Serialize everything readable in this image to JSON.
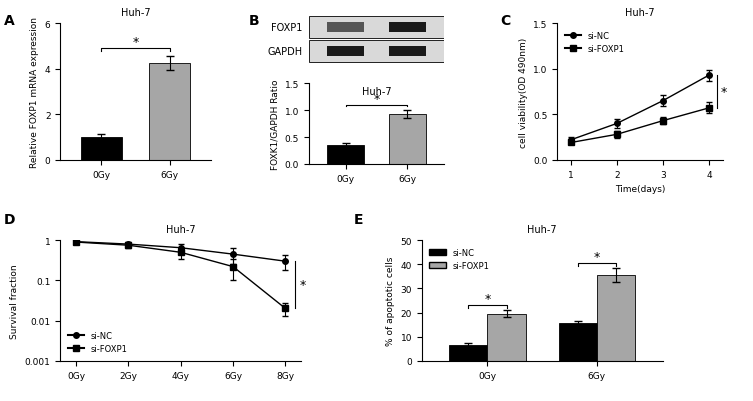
{
  "chart_data": [
    {
      "panel": "A",
      "type": "bar",
      "title": "Huh-7",
      "ylabel": "Relative FOXP1 mRNA expression",
      "categories": [
        "0Gy",
        "6Gy"
      ],
      "values": [
        1.0,
        4.25
      ],
      "errors": [
        0.15,
        0.3
      ],
      "colors": [
        "#000000",
        "#a6a6a6"
      ],
      "ylim": [
        0,
        6
      ],
      "yticks": [
        0,
        2,
        4,
        6
      ],
      "significance": "*"
    },
    {
      "panel": "B",
      "type": "bar",
      "title": "Huh-7",
      "ylabel": "FOXK1/GAPDH Ratio",
      "blot": [
        "FOXP1",
        "GAPDH"
      ],
      "categories": [
        "0Gy",
        "6Gy"
      ],
      "values": [
        0.35,
        0.93
      ],
      "errors": [
        0.03,
        0.08
      ],
      "colors": [
        "#000000",
        "#a6a6a6"
      ],
      "ylim": [
        0,
        1.5
      ],
      "yticks": [
        0.0,
        0.5,
        1.0,
        1.5
      ],
      "significance": "*"
    },
    {
      "panel": "C",
      "type": "line",
      "title": "Huh-7",
      "ylabel": "cell viability(OD 490nm)",
      "xlabel": "Time(days)",
      "x": [
        1,
        2,
        3,
        4
      ],
      "xlim": [
        0.7,
        4.3
      ],
      "xticks": [
        1,
        2,
        3,
        4
      ],
      "ylim": [
        0,
        1.5
      ],
      "yticks": [
        0.0,
        0.5,
        1.0,
        1.5
      ],
      "legend": "upper left",
      "series": [
        {
          "name": "si-NC",
          "color": "#000000",
          "marker": "circle",
          "line_style": "solid",
          "values": [
            0.22,
            0.4,
            0.65,
            0.93
          ],
          "errors": [
            0.03,
            0.05,
            0.06,
            0.06
          ]
        },
        {
          "name": "si-FOXP1",
          "color": "#000000",
          "marker": "square",
          "line_style": "solid",
          "values": [
            0.19,
            0.28,
            0.43,
            0.57
          ],
          "errors": [
            0.02,
            0.04,
            0.04,
            0.06
          ]
        }
      ],
      "significance": "*"
    },
    {
      "panel": "D",
      "type": "line",
      "title": "Huh-7",
      "ylabel": "Survival fraction",
      "log": "y",
      "categories": [
        "0Gy",
        "2Gy",
        "4Gy",
        "6Gy",
        "8Gy"
      ],
      "ylim": [
        0.001,
        1
      ],
      "yticks": [
        0.001,
        0.01,
        0.1,
        1
      ],
      "legend": "lower left",
      "series": [
        {
          "name": "si-NC",
          "color": "#000000",
          "marker": "circle",
          "line_style": "solid",
          "values": [
            0.92,
            0.8,
            0.65,
            0.45,
            0.3
          ],
          "errors": [
            0.05,
            0.08,
            0.15,
            0.2,
            0.12
          ]
        },
        {
          "name": "si-FOXP1",
          "color": "#000000",
          "marker": "square",
          "line_style": "solid",
          "values": [
            0.9,
            0.75,
            0.5,
            0.22,
            0.02
          ],
          "errors": [
            0.05,
            0.1,
            0.15,
            0.12,
            0.007
          ]
        }
      ],
      "significance": "*"
    },
    {
      "panel": "E",
      "type": "bar",
      "title": "Huh-7",
      "ylabel": "% of apoptotic cells",
      "categories": [
        "0Gy",
        "6Gy"
      ],
      "ylim": [
        0,
        50
      ],
      "yticks": [
        0,
        10,
        20,
        30,
        40,
        50
      ],
      "legend": "upper left",
      "series": [
        {
          "name": "si-NC",
          "color": "#000000",
          "values": [
            6.5,
            15.5
          ],
          "errors": [
            0.7,
            1.0
          ]
        },
        {
          "name": "si-FOXP1",
          "color": "#a6a6a6",
          "values": [
            19.5,
            35.5
          ],
          "errors": [
            1.5,
            3.0
          ]
        }
      ],
      "significance": "*"
    }
  ]
}
